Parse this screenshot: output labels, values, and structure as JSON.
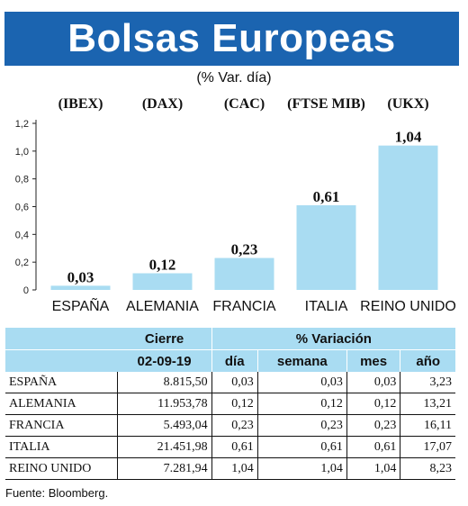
{
  "header": {
    "title": "Bolsas Europeas",
    "subtitle": "(% Var. día)"
  },
  "chart_data": {
    "type": "bar",
    "index_codes": [
      "(IBEX)",
      "(DAX)",
      "(CAC)",
      "(FTSE MIB)",
      "(UKX)"
    ],
    "categories": [
      "ESPAÑA",
      "ALEMANIA",
      "FRANCIA",
      "ITALIA",
      "REINO UNIDO"
    ],
    "values": [
      0.03,
      0.12,
      0.23,
      0.61,
      1.04
    ],
    "value_labels": [
      "0,03",
      "0,12",
      "0,23",
      "0,61",
      "1,04"
    ],
    "yticks": [
      "0",
      "0,2",
      "0,4",
      "0,6",
      "0,8",
      "1,0",
      "1,2"
    ],
    "ylim": [
      0,
      1.2
    ],
    "bar_color": "#a9dcf2",
    "grid": false
  },
  "table": {
    "header_cierre": "Cierre",
    "header_variacion": "% Variación",
    "date": "02-09-19",
    "sub_headers": [
      "día",
      "semana",
      "mes",
      "año"
    ],
    "rows": [
      {
        "country": "ESPAÑA",
        "cierre": "8.815,50",
        "dia": "0,03",
        "semana": "0,03",
        "mes": "0,03",
        "ano": "3,23"
      },
      {
        "country": "ALEMANIA",
        "cierre": "11.953,78",
        "dia": "0,12",
        "semana": "0,12",
        "mes": "0,12",
        "ano": "13,21"
      },
      {
        "country": "FRANCIA",
        "cierre": "5.493,04",
        "dia": "0,23",
        "semana": "0,23",
        "mes": "0,23",
        "ano": "16,11"
      },
      {
        "country": "ITALIA",
        "cierre": "21.451,98",
        "dia": "0,61",
        "semana": "0,61",
        "mes": "0,61",
        "ano": "17,07"
      },
      {
        "country": "REINO UNIDO",
        "cierre": "7.281,94",
        "dia": "1,04",
        "semana": "1,04",
        "mes": "1,04",
        "ano": "8,23"
      }
    ]
  },
  "colors": {
    "banner": "#1b64b0",
    "header_bg": "#a9dcf2"
  },
  "footer": {
    "source": "Fuente: Bloomberg."
  }
}
